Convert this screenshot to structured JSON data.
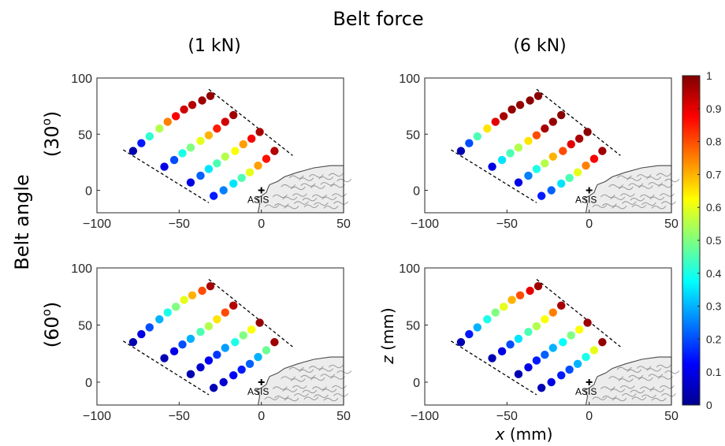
{
  "figure": {
    "super_title": "Belt force",
    "col_titles": [
      "(1 kN)",
      "(6 kN)"
    ],
    "row_group_label": "Belt angle",
    "row_labels": [
      {
        "value": "30",
        "sup": "o"
      },
      {
        "value": "60",
        "sup": "o"
      }
    ],
    "xlabel_var": "x",
    "xlabel_unit": "(mm)",
    "ylabel_var": "z",
    "ylabel_unit": "(mm)",
    "landmark_label": "ASIS"
  },
  "colorbar": {
    "min": 0,
    "max": 1,
    "ticks": [
      "0",
      "0.1",
      "0.2",
      "0.3",
      "0.4",
      "0.5",
      "0.6",
      "0.7",
      "0.8",
      "0.9",
      "1"
    ],
    "colormap": "jet"
  },
  "chart_data": [
    {
      "type": "scatter",
      "panel": "1 kN, 30°",
      "xlim": [
        -100,
        50
      ],
      "ylim": [
        -20,
        100
      ],
      "xticks": [
        "−100",
        "−50",
        "0",
        "50"
      ],
      "yticks": [
        "0",
        "50",
        "100"
      ],
      "grid": false,
      "rows": [
        {
          "x": [
            -78,
            -73,
            -68,
            -62,
            -57,
            -52,
            -47,
            -42,
            -36,
            -31
          ],
          "y": [
            35,
            42,
            48,
            55,
            61,
            66,
            72,
            76,
            80,
            84
          ],
          "value": [
            0.05,
            0.15,
            0.42,
            0.55,
            0.75,
            0.88,
            0.92,
            0.95,
            0.97,
            0.98
          ]
        },
        {
          "x": [
            -59,
            -53,
            -48,
            -43,
            -37,
            -32,
            -27,
            -22,
            -17
          ],
          "y": [
            21,
            27,
            33,
            38,
            44,
            49,
            55,
            61,
            67
          ],
          "value": [
            0.1,
            0.2,
            0.4,
            0.5,
            0.6,
            0.7,
            0.85,
            0.92,
            0.97
          ]
        },
        {
          "x": [
            -43,
            -37,
            -32,
            -27,
            -22,
            -16,
            -11,
            -6,
            -1
          ],
          "y": [
            7,
            13,
            19,
            24,
            30,
            35,
            41,
            46,
            52
          ],
          "value": [
            0.1,
            0.22,
            0.35,
            0.45,
            0.55,
            0.62,
            0.72,
            0.88,
            0.96
          ]
        },
        {
          "x": [
            -29,
            -23,
            -17,
            -12,
            -7,
            -2,
            3,
            8
          ],
          "y": [
            -5,
            0,
            6,
            11,
            16,
            22,
            28,
            35
          ],
          "value": [
            0.15,
            0.25,
            0.35,
            0.45,
            0.6,
            0.72,
            0.86,
            0.95
          ]
        }
      ]
    },
    {
      "type": "scatter",
      "panel": "6 kN, 30°",
      "xlim": [
        -100,
        50
      ],
      "ylim": [
        -20,
        100
      ],
      "xticks": [
        "−100",
        "−50",
        "0",
        "50"
      ],
      "yticks": [
        "0",
        "50",
        "100"
      ],
      "grid": false,
      "rows": [
        {
          "x": [
            -78,
            -73,
            -68,
            -62,
            -57,
            -52,
            -47,
            -42,
            -36,
            -31
          ],
          "y": [
            35,
            42,
            48,
            55,
            61,
            66,
            72,
            76,
            80,
            84
          ],
          "value": [
            0.05,
            0.2,
            0.45,
            0.65,
            0.9,
            0.96,
            0.98,
            0.98,
            0.99,
            0.99
          ]
        },
        {
          "x": [
            -59,
            -53,
            -48,
            -43,
            -37,
            -32,
            -27,
            -22,
            -17
          ],
          "y": [
            21,
            27,
            33,
            38,
            44,
            49,
            55,
            61,
            67
          ],
          "value": [
            0.1,
            0.35,
            0.45,
            0.55,
            0.65,
            0.8,
            0.96,
            0.98,
            0.99
          ]
        },
        {
          "x": [
            -43,
            -37,
            -32,
            -27,
            -22,
            -16,
            -11,
            -6,
            -1
          ],
          "y": [
            7,
            13,
            19,
            24,
            30,
            35,
            41,
            46,
            52
          ],
          "value": [
            0.1,
            0.25,
            0.4,
            0.55,
            0.7,
            0.8,
            0.9,
            0.96,
            0.99
          ]
        },
        {
          "x": [
            -29,
            -23,
            -17,
            -12,
            -7,
            -2,
            3,
            8
          ],
          "y": [
            -5,
            0,
            6,
            11,
            16,
            22,
            28,
            35
          ],
          "value": [
            0.15,
            0.22,
            0.35,
            0.45,
            0.6,
            0.75,
            0.88,
            0.97
          ]
        }
      ]
    },
    {
      "type": "scatter",
      "panel": "1 kN, 60°",
      "xlim": [
        -100,
        50
      ],
      "ylim": [
        -20,
        100
      ],
      "xticks": [
        "−100",
        "−50",
        "0",
        "50"
      ],
      "yticks": [
        "0",
        "50",
        "100"
      ],
      "grid": false,
      "rows": [
        {
          "x": [
            -78,
            -73,
            -68,
            -62,
            -57,
            -52,
            -47,
            -42,
            -36,
            -31
          ],
          "y": [
            35,
            42,
            48,
            55,
            61,
            66,
            72,
            76,
            80,
            84
          ],
          "value": [
            0.05,
            0.1,
            0.2,
            0.3,
            0.4,
            0.5,
            0.6,
            0.7,
            0.8,
            0.96
          ]
        },
        {
          "x": [
            -59,
            -53,
            -48,
            -43,
            -37,
            -32,
            -27,
            -22,
            -17
          ],
          "y": [
            21,
            27,
            33,
            38,
            44,
            49,
            55,
            61,
            67
          ],
          "value": [
            0.05,
            0.1,
            0.2,
            0.3,
            0.45,
            0.55,
            0.65,
            0.8,
            0.95
          ]
        },
        {
          "x": [
            -43,
            -37,
            -32,
            -27,
            -22,
            -16,
            -11,
            -6,
            -1
          ],
          "y": [
            7,
            13,
            19,
            24,
            30,
            35,
            41,
            46,
            52
          ],
          "value": [
            0.05,
            0.08,
            0.12,
            0.18,
            0.28,
            0.4,
            0.5,
            0.62,
            0.98
          ]
        },
        {
          "x": [
            -29,
            -23,
            -17,
            -12,
            -7,
            -2,
            3,
            8
          ],
          "y": [
            -5,
            0,
            6,
            11,
            16,
            22,
            28,
            35
          ],
          "value": [
            0.05,
            0.08,
            0.12,
            0.15,
            0.22,
            0.3,
            0.48,
            0.97
          ]
        }
      ]
    },
    {
      "type": "scatter",
      "panel": "6 kN, 60°",
      "xlim": [
        -100,
        50
      ],
      "ylim": [
        -20,
        100
      ],
      "xticks": [
        "−100",
        "−50",
        "0",
        "50"
      ],
      "yticks": [
        "0",
        "50",
        "100"
      ],
      "grid": false,
      "rows": [
        {
          "x": [
            -78,
            -73,
            -68,
            -62,
            -57,
            -52,
            -47,
            -42,
            -36,
            -31
          ],
          "y": [
            35,
            42,
            48,
            55,
            61,
            66,
            72,
            76,
            80,
            84
          ],
          "value": [
            0.05,
            0.15,
            0.3,
            0.4,
            0.5,
            0.6,
            0.7,
            0.8,
            0.9,
            0.97
          ]
        },
        {
          "x": [
            -59,
            -53,
            -48,
            -43,
            -37,
            -32,
            -27,
            -22,
            -17
          ],
          "y": [
            21,
            27,
            33,
            38,
            44,
            49,
            55,
            61,
            67
          ],
          "value": [
            0.05,
            0.1,
            0.2,
            0.35,
            0.45,
            0.55,
            0.62,
            0.75,
            0.96
          ]
        },
        {
          "x": [
            -43,
            -37,
            -32,
            -27,
            -22,
            -16,
            -11,
            -6,
            -1
          ],
          "y": [
            7,
            13,
            19,
            24,
            30,
            35,
            41,
            46,
            52
          ],
          "value": [
            0.05,
            0.1,
            0.15,
            0.22,
            0.3,
            0.38,
            0.5,
            0.62,
            0.97
          ]
        },
        {
          "x": [
            -29,
            -23,
            -17,
            -12,
            -7,
            -2,
            3,
            8
          ],
          "y": [
            -5,
            0,
            6,
            11,
            16,
            22,
            28,
            35
          ],
          "value": [
            0.05,
            0.1,
            0.15,
            0.2,
            0.3,
            0.4,
            0.6,
            0.98
          ]
        }
      ]
    }
  ]
}
